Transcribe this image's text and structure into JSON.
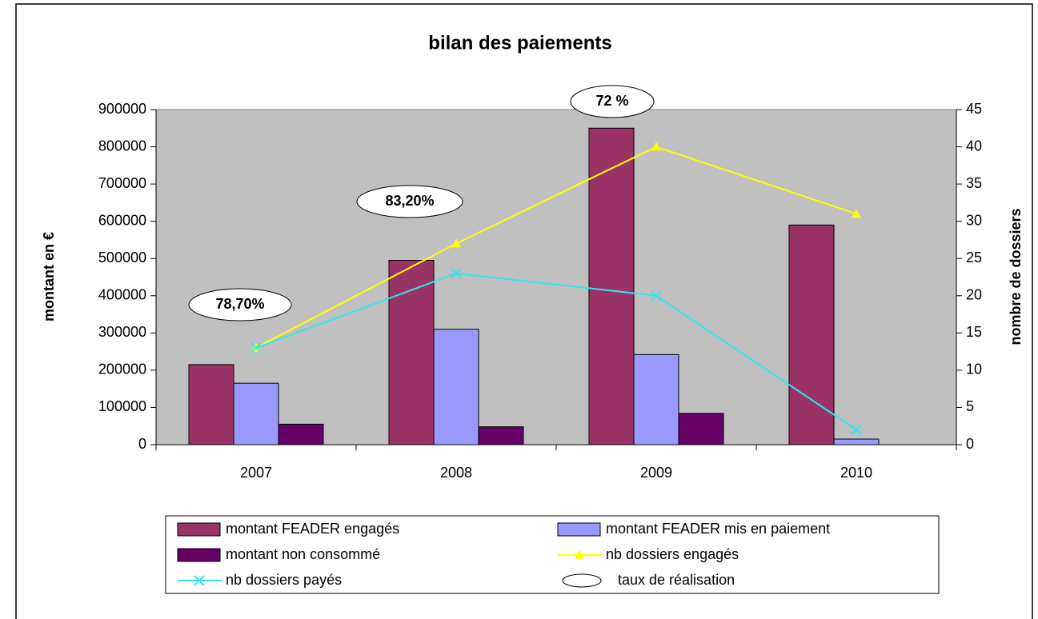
{
  "chart_data": {
    "type": "bar",
    "title": "bilan des paiements",
    "y_label": "montant en €",
    "y2_label": "nombre de dossiers",
    "categories": [
      "2007",
      "2008",
      "2009",
      "2010"
    ],
    "series": [
      {
        "name": "montant FEADER engagés",
        "type": "bar",
        "color": "#993366",
        "values": [
          215000,
          495000,
          850000,
          590000
        ]
      },
      {
        "name": "montant FEADER mis en paiement",
        "type": "bar",
        "color": "#9999ff",
        "values": [
          165000,
          310000,
          242000,
          15000
        ]
      },
      {
        "name": "montant non consommé",
        "type": "bar",
        "color": "#660066",
        "values": [
          55000,
          48000,
          84000,
          0
        ]
      },
      {
        "name": "nb dossiers engagés",
        "type": "line",
        "axis": "y2",
        "marker": "triangle",
        "color": "#ffff00",
        "values": [
          13,
          27,
          40,
          31
        ]
      },
      {
        "name": "nb dossiers payés",
        "type": "line",
        "axis": "y2",
        "marker": "x",
        "color": "#33e6f0",
        "values": [
          13,
          23,
          20,
          2
        ]
      }
    ],
    "annotations": [
      "78,70%",
      "83,20%",
      "72 %"
    ],
    "annotation_legend": "taux de réalisation",
    "ylim": [
      0,
      900000
    ],
    "yticks": [
      0,
      100000,
      200000,
      300000,
      400000,
      500000,
      600000,
      700000,
      800000,
      900000
    ],
    "y2lim": [
      0,
      45
    ],
    "y2ticks": [
      0,
      5,
      10,
      15,
      20,
      25,
      30,
      35,
      40,
      45
    ],
    "grid": false
  }
}
